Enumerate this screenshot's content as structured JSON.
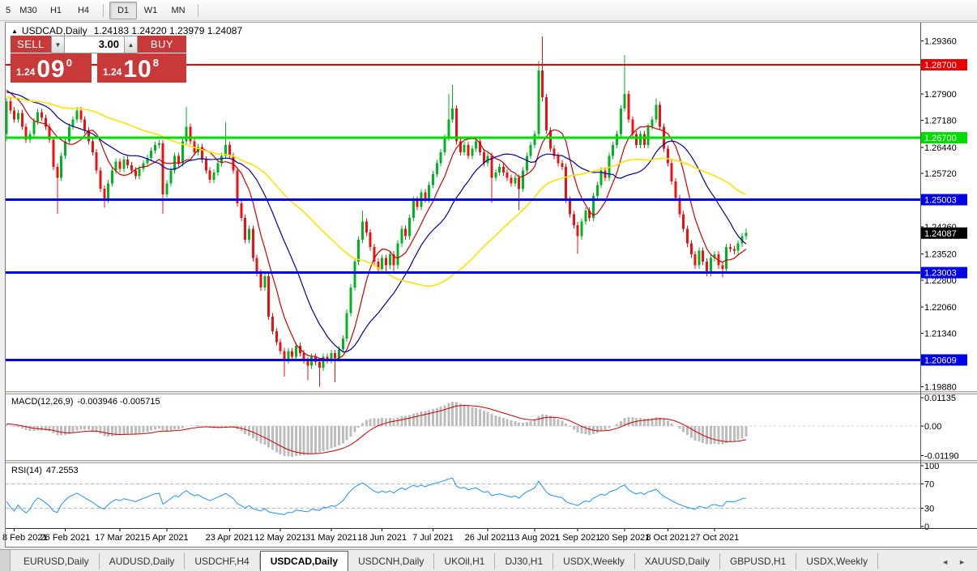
{
  "toolbar": {
    "timeframes": [
      {
        "label": "5",
        "active": false
      },
      {
        "label": "M30",
        "active": false
      },
      {
        "label": "H1",
        "active": false
      },
      {
        "label": "H4",
        "active": false
      },
      {
        "label": "D1",
        "active": true
      },
      {
        "label": "W1",
        "active": false
      },
      {
        "label": "MN",
        "active": false
      }
    ]
  },
  "chart": {
    "symbol_title": "USDCAD,Daily",
    "ohlc_title": "1.24183 1.24220 1.23979 1.24087",
    "trade_panel": {
      "sell_label": "SELL",
      "buy_label": "BUY",
      "volume": "3.00",
      "sell_price": {
        "small": "1.24",
        "big": "09",
        "sup": "0"
      },
      "buy_price": {
        "small": "1.24",
        "big": "10",
        "sup": "8"
      },
      "panel_color": "#c83a3a"
    }
  },
  "chart_data": {
    "type": "candlestick",
    "symbol": "USDCAD",
    "timeframe": "Daily",
    "title": "USDCAD,Daily 1.24183 1.24220 1.23979 1.24087",
    "grid": false,
    "colors": {
      "up": "#00b321",
      "down": "#ee1111",
      "ma_fast": "#cc0000",
      "ma_mid": "#000099",
      "ma_slow": "#ffe100",
      "hline_red": "#e60000",
      "hline_green": "#00dc00",
      "hline_blue": "#0000e6",
      "macd_hist": "#bdbdbd",
      "macd_signal": "#cc0000",
      "rsi_line": "#1e90ff",
      "current_label_bg": "#000000"
    },
    "price_axis_ticks": [
      {
        "label": "1.29360",
        "value": 1.2936
      },
      {
        "label": "1.27900",
        "value": 1.279
      },
      {
        "label": "1.27180",
        "value": 1.2718
      },
      {
        "label": "1.26440",
        "value": 1.2644
      },
      {
        "label": "1.25720",
        "value": 1.2572
      },
      {
        "label": "1.24260",
        "value": 1.2426
      },
      {
        "label": "1.23520",
        "value": 1.2352
      },
      {
        "label": "1.22800",
        "value": 1.228
      },
      {
        "label": "1.22060",
        "value": 1.2206
      },
      {
        "label": "1.21340",
        "value": 1.2134
      },
      {
        "label": "1.19880",
        "value": 1.1988
      }
    ],
    "hlines": [
      {
        "price": 1.287,
        "label": "1.28700",
        "color": "#e60000",
        "width": 2
      },
      {
        "price": 1.267,
        "label": "1.26700",
        "color": "#00dc00",
        "width": 3
      },
      {
        "price": 1.25003,
        "label": "1.25003",
        "color": "#0000e6",
        "width": 3
      },
      {
        "price": 1.23003,
        "label": "1.23003",
        "color": "#0000e6",
        "width": 3
      },
      {
        "price": 1.20609,
        "label": "1.20609",
        "color": "#0000e6",
        "width": 3
      }
    ],
    "current_price": {
      "value": 1.24087,
      "label": "1.24087"
    },
    "date_ticks": [
      {
        "label": "8 Feb 2021",
        "i": 2
      },
      {
        "label": "26 Feb 2021",
        "i": 15
      },
      {
        "label": "17 Mar 2021",
        "i": 29
      },
      {
        "label": "5 Apr 2021",
        "i": 41
      },
      {
        "label": "23 Apr 2021",
        "i": 57
      },
      {
        "label": "12 May 2021",
        "i": 70
      },
      {
        "label": "31 May 2021",
        "i": 83
      },
      {
        "label": "18 Jun 2021",
        "i": 96
      },
      {
        "label": "7 Jul 2021",
        "i": 109
      },
      {
        "label": "26 Jul 2021",
        "i": 123
      },
      {
        "label": "13 Aug 2021",
        "i": 135
      },
      {
        "label": "1 Sep 2021",
        "i": 146
      },
      {
        "label": "20 Sep 2021",
        "i": 158
      },
      {
        "label": "8 Oct 2021",
        "i": 169
      },
      {
        "label": "27 Oct 2021",
        "i": 181
      }
    ],
    "warmup_closes": [
      1.2745,
      1.275,
      1.2748,
      1.2755,
      1.276,
      1.2758,
      1.2762,
      1.2768,
      1.2765,
      1.277,
      1.2772,
      1.2768,
      1.2775,
      1.278,
      1.2776,
      1.2782,
      1.2788,
      1.2785,
      1.279,
      1.2786,
      1.2792,
      1.2796,
      1.279,
      1.2795,
      1.28,
      1.2796,
      1.2802,
      1.2806,
      1.28,
      1.2804,
      1.2808,
      1.2812,
      1.2806,
      1.2798
    ],
    "candles": {
      "first_open": 1.268,
      "default_wick": 0.0009,
      "closes": [
        1.277,
        1.2745,
        1.272,
        1.2738,
        1.27,
        1.2665,
        1.268,
        1.2715,
        1.274,
        1.2725,
        1.27,
        1.2665,
        1.259,
        1.256,
        1.262,
        1.266,
        1.27,
        1.272,
        1.2745,
        1.272,
        1.269,
        1.266,
        1.263,
        1.258,
        1.253,
        1.25,
        1.2545,
        1.258,
        1.2605,
        1.2585,
        1.261,
        1.2595,
        1.258,
        1.2565,
        1.2585,
        1.26,
        1.2615,
        1.2635,
        1.265,
        1.2655,
        1.2515,
        1.2545,
        1.258,
        1.262,
        1.26,
        1.266,
        1.27,
        1.266,
        1.263,
        1.2645,
        1.261,
        1.258,
        1.2555,
        1.2575,
        1.26,
        1.262,
        1.265,
        1.262,
        1.258,
        1.249,
        1.245,
        1.239,
        1.242,
        1.234,
        1.23,
        1.226,
        1.229,
        1.218,
        1.214,
        1.211,
        1.2085,
        1.206,
        1.2085,
        1.207,
        1.21,
        1.208,
        1.206,
        1.2045,
        1.207,
        1.2055,
        1.204,
        1.207,
        1.206,
        1.208,
        1.2065,
        1.209,
        1.212,
        1.219,
        1.226,
        1.233,
        1.239,
        1.244,
        1.241,
        1.237,
        1.233,
        1.231,
        1.234,
        1.232,
        1.235,
        1.232,
        1.238,
        1.242,
        1.24,
        1.245,
        1.25,
        1.248,
        1.252,
        1.25,
        1.254,
        1.257,
        1.26,
        1.263,
        1.267,
        1.272,
        1.275,
        1.266,
        1.263,
        1.265,
        1.262,
        1.264,
        1.266,
        1.263,
        1.26,
        1.262,
        1.256,
        1.2575,
        1.259,
        1.2575,
        1.256,
        1.2545,
        1.256,
        1.253,
        1.258,
        1.262,
        1.265,
        1.268,
        1.2855,
        1.2781,
        1.269,
        1.264,
        1.262,
        1.26,
        1.259,
        1.25,
        1.246,
        1.243,
        1.24,
        1.244,
        1.247,
        1.245,
        1.251,
        1.254,
        1.258,
        1.256,
        1.262,
        1.265,
        1.268,
        1.275,
        1.279,
        1.272,
        1.268,
        1.265,
        1.268,
        1.265,
        1.27,
        1.272,
        1.276,
        1.27,
        1.264,
        1.26,
        1.255,
        1.2505,
        1.246,
        1.242,
        1.238,
        1.235,
        1.232,
        1.236,
        1.233,
        1.23,
        1.234,
        1.235,
        1.232,
        1.231,
        1.237,
        1.2365,
        1.236,
        1.238,
        1.24,
        1.2409
      ],
      "wick_overrides": {
        "0": {
          "l": 1.266
        },
        "13": {
          "l": 1.2462
        },
        "25": {
          "l": 1.2478
        },
        "40": {
          "l": 1.2462
        },
        "46": {
          "h": 1.2755
        },
        "56": {
          "h": 1.2712
        },
        "71": {
          "l": 1.2015
        },
        "77": {
          "l": 1.2005
        },
        "80": {
          "l": 1.1988
        },
        "84": {
          "l": 1.2
        },
        "91": {
          "h": 1.247
        },
        "95": {
          "l": 1.23
        },
        "97": {
          "l": 1.2301
        },
        "99": {
          "l": 1.23
        },
        "113": {
          "h": 1.279
        },
        "114": {
          "h": 1.2815
        },
        "124": {
          "l": 1.2492
        },
        "131": {
          "l": 1.2472
        },
        "136": {
          "h": 1.288
        },
        "137": {
          "h": 1.2948,
          "l": 1.277
        },
        "146": {
          "l": 1.2352
        },
        "158": {
          "h": 1.2897
        },
        "166": {
          "h": 1.2778
        },
        "183": {
          "l": 1.2287
        },
        "189": {
          "h": 1.2422
        }
      }
    },
    "moving_averages": [
      {
        "period": 8,
        "color": "#cc0000",
        "width": 1.2
      },
      {
        "period": 20,
        "color": "#000099",
        "width": 1.2
      },
      {
        "period": 50,
        "color": "#ffe100",
        "width": 1.6
      }
    ],
    "macd": {
      "label": "MACD(12,26,9)",
      "values_text": "-0.003946 -0.005715",
      "fast": 12,
      "slow": 26,
      "signal": 9,
      "axis_labels": [
        {
          "label": "0.01135",
          "v": 0.01135
        },
        {
          "label": "0.00",
          "v": 0
        },
        {
          "label": "-0.01190",
          "v": -0.0119
        }
      ]
    },
    "rsi": {
      "label": "RSI(14)",
      "value_text": "47.2553",
      "period": 14,
      "levels": [
        70,
        30
      ],
      "axis_labels": [
        {
          "label": "100",
          "v": 100
        },
        {
          "label": "70",
          "v": 70
        },
        {
          "label": "30",
          "v": 30
        },
        {
          "label": "0",
          "v": 0
        }
      ]
    }
  },
  "tabs": {
    "items": [
      {
        "label": "EURUSD,Daily",
        "active": false
      },
      {
        "label": "AUDUSD,Daily",
        "active": false
      },
      {
        "label": "USDCHF,H4",
        "active": false
      },
      {
        "label": "USDCAD,Daily",
        "active": true
      },
      {
        "label": "USDCNH,Daily",
        "active": false
      },
      {
        "label": "UKOil,H1",
        "active": false
      },
      {
        "label": "DJ30,H1",
        "active": false
      },
      {
        "label": "USDX,Weekly",
        "active": false
      },
      {
        "label": "XAUUSD,Daily",
        "active": false
      },
      {
        "label": "GBPUSD,H1",
        "active": false
      },
      {
        "label": "USDX,Weekly",
        "active": false
      }
    ],
    "scroll_left": "◄",
    "scroll_right": "►"
  }
}
